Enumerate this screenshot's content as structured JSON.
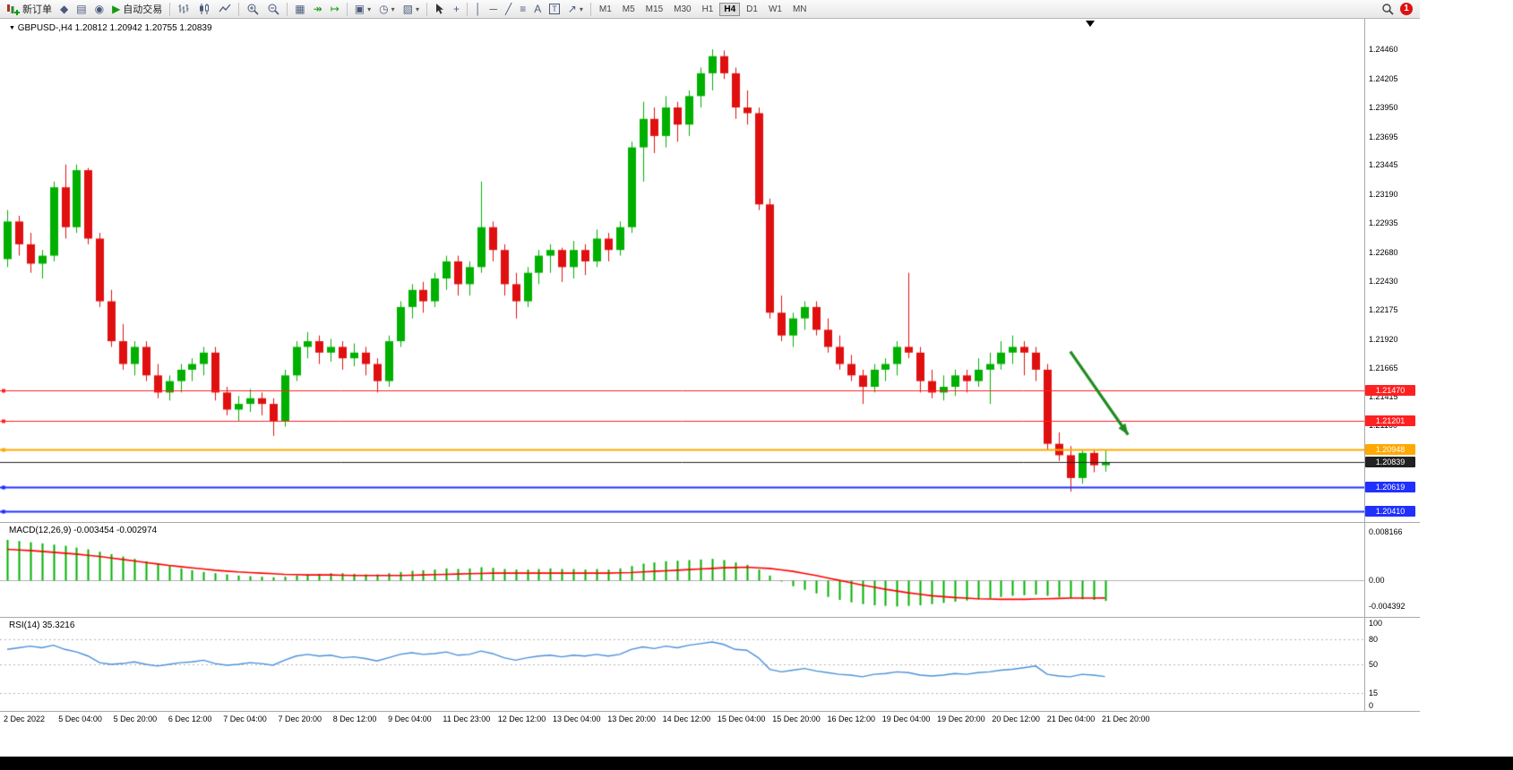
{
  "window": {
    "notification_count": "1"
  },
  "toolbar": {
    "new_order_label": "新订单",
    "autotrade_label": "自动交易",
    "icon_glyphs": {
      "symbols": "◆",
      "market_watch": "▤",
      "expert_advisors": "◉",
      "autotrade_play": "▶",
      "tile_windows": "▦",
      "auto_scroll": "↠",
      "chart_shift": "↦",
      "new_chart": "▣",
      "profiles": "◷",
      "templates": "▧",
      "crosshair": "+",
      "vertical_line": "│",
      "horizontal_line": "─",
      "trend_line": "╱",
      "fibonacci": "≡",
      "text": "A",
      "text_label": "T",
      "arrows": "↗",
      "caret": "▾"
    },
    "timeframes": [
      "M1",
      "M5",
      "M15",
      "M30",
      "H1",
      "H4",
      "D1",
      "W1",
      "MN"
    ],
    "active_timeframe": "H4"
  },
  "colors": {
    "bull": "#00b000",
    "bear": "#e01010",
    "macd_histogram": "#00b000",
    "macd_signal": "#ff0000",
    "rsi_line": "#4a90d9",
    "level_red": "#ff2020",
    "level_orange": "#ffa800",
    "level_blue": "#2030ff",
    "current_price": "#222222",
    "arrow": "#1f8b1f"
  },
  "chart_data": [
    {
      "type": "candlestick",
      "title": "GBPUSD-,H4",
      "ohlc_text": "1.20812 1.20942 1.20755 1.20839",
      "y_range": [
        1.2033,
        1.2472
      ],
      "price_axis_labels": [
        "1.24460",
        "1.24205",
        "1.23950",
        "1.23695",
        "1.23445",
        "1.23190",
        "1.22935",
        "1.22680",
        "1.22430",
        "1.22175",
        "1.21920",
        "1.21665",
        "1.21415",
        "1.21160"
      ],
      "x_axis_labels": [
        "2 Dec 2022",
        "5 Dec 04:00",
        "5 Dec 20:00",
        "6 Dec 12:00",
        "7 Dec 04:00",
        "7 Dec 20:00",
        "8 Dec 12:00",
        "9 Dec 04:00",
        "11 Dec 23:00",
        "12 Dec 12:00",
        "13 Dec 04:00",
        "13 Dec 20:00",
        "14 Dec 12:00",
        "15 Dec 04:00",
        "15 Dec 20:00",
        "16 Dec 12:00",
        "19 Dec 04:00",
        "19 Dec 20:00",
        "20 Dec 12:00",
        "21 Dec 04:00",
        "21 Dec 20:00"
      ],
      "hlines": [
        {
          "price": 1.2147,
          "label": "1.21470",
          "color": "#ff2020",
          "width": 1
        },
        {
          "price": 1.21201,
          "label": "1.21201",
          "color": "#ff2020",
          "width": 1
        },
        {
          "price": 1.20948,
          "label": "1.20948",
          "color": "#ffa800",
          "width": 2
        },
        {
          "price": 1.20839,
          "label": "1.20839",
          "color": "#222222",
          "width": 1,
          "current": true
        },
        {
          "price": 1.20619,
          "label": "1.20619",
          "color": "#2030ff",
          "width": 2
        },
        {
          "price": 1.2041,
          "label": "1.20410",
          "color": "#2030ff",
          "width": 2
        }
      ],
      "arrow": {
        "from_index": 92,
        "from_price": 1.2181,
        "to_index": 97,
        "to_price": 1.2108
      },
      "candles": [
        [
          1.2262,
          1.2305,
          1.2255,
          1.2295
        ],
        [
          1.2295,
          1.23,
          1.2265,
          1.2275
        ],
        [
          1.2275,
          1.2285,
          1.225,
          1.2258
        ],
        [
          1.2258,
          1.227,
          1.2245,
          1.2265
        ],
        [
          1.2265,
          1.233,
          1.226,
          1.2325
        ],
        [
          1.2325,
          1.2345,
          1.228,
          1.229
        ],
        [
          1.229,
          1.2345,
          1.2285,
          1.234
        ],
        [
          1.234,
          1.2342,
          1.2275,
          1.228
        ],
        [
          1.228,
          1.2285,
          1.222,
          1.2225
        ],
        [
          1.2225,
          1.2235,
          1.2185,
          1.219
        ],
        [
          1.219,
          1.2205,
          1.2165,
          1.217
        ],
        [
          1.217,
          1.219,
          1.216,
          1.2185
        ],
        [
          1.2185,
          1.219,
          1.2155,
          1.216
        ],
        [
          1.216,
          1.217,
          1.214,
          1.2145
        ],
        [
          1.2145,
          1.216,
          1.2138,
          1.2155
        ],
        [
          1.2155,
          1.217,
          1.2145,
          1.2165
        ],
        [
          1.2165,
          1.2175,
          1.2155,
          1.217
        ],
        [
          1.217,
          1.2185,
          1.216,
          1.218
        ],
        [
          1.218,
          1.2185,
          1.2138,
          1.2145
        ],
        [
          1.2145,
          1.215,
          1.2125,
          1.213
        ],
        [
          1.213,
          1.2142,
          1.212,
          1.2135
        ],
        [
          1.2135,
          1.2148,
          1.2128,
          1.214
        ],
        [
          1.214,
          1.2145,
          1.2125,
          1.2135
        ],
        [
          1.2135,
          1.214,
          1.2107,
          1.212
        ],
        [
          1.212,
          1.2165,
          1.2115,
          1.216
        ],
        [
          1.216,
          1.219,
          1.2155,
          1.2185
        ],
        [
          1.2185,
          1.2198,
          1.2175,
          1.219
        ],
        [
          1.219,
          1.2195,
          1.217,
          1.218
        ],
        [
          1.218,
          1.2192,
          1.2172,
          1.2185
        ],
        [
          1.2185,
          1.219,
          1.2165,
          1.2175
        ],
        [
          1.2175,
          1.2188,
          1.2168,
          1.218
        ],
        [
          1.218,
          1.2185,
          1.216,
          1.217
        ],
        [
          1.217,
          1.2175,
          1.2145,
          1.2155
        ],
        [
          1.2155,
          1.2195,
          1.215,
          1.219
        ],
        [
          1.219,
          1.2225,
          1.2185,
          1.222
        ],
        [
          1.222,
          1.224,
          1.221,
          1.2235
        ],
        [
          1.2235,
          1.2242,
          1.2215,
          1.2225
        ],
        [
          1.2225,
          1.225,
          1.222,
          1.2245
        ],
        [
          1.2245,
          1.2265,
          1.2235,
          1.226
        ],
        [
          1.226,
          1.2265,
          1.223,
          1.224
        ],
        [
          1.224,
          1.226,
          1.223,
          1.2255
        ],
        [
          1.2255,
          1.233,
          1.225,
          1.229
        ],
        [
          1.229,
          1.2295,
          1.226,
          1.227
        ],
        [
          1.227,
          1.2275,
          1.223,
          1.224
        ],
        [
          1.224,
          1.225,
          1.221,
          1.2225
        ],
        [
          1.2225,
          1.2255,
          1.222,
          1.225
        ],
        [
          1.225,
          1.227,
          1.224,
          1.2265
        ],
        [
          1.2265,
          1.2275,
          1.225,
          1.227
        ],
        [
          1.227,
          1.2272,
          1.2242,
          1.2255
        ],
        [
          1.2255,
          1.2278,
          1.2245,
          1.227
        ],
        [
          1.227,
          1.2275,
          1.2248,
          1.226
        ],
        [
          1.226,
          1.2288,
          1.2255,
          1.228
        ],
        [
          1.228,
          1.2285,
          1.226,
          1.227
        ],
        [
          1.227,
          1.2295,
          1.2265,
          1.229
        ],
        [
          1.229,
          1.2365,
          1.2285,
          1.236
        ],
        [
          1.236,
          1.24,
          1.233,
          1.2385
        ],
        [
          1.2385,
          1.2395,
          1.2355,
          1.237
        ],
        [
          1.237,
          1.2405,
          1.236,
          1.2395
        ],
        [
          1.2395,
          1.24,
          1.2365,
          1.238
        ],
        [
          1.238,
          1.241,
          1.237,
          1.2405
        ],
        [
          1.2405,
          1.243,
          1.2395,
          1.2425
        ],
        [
          1.2425,
          1.2446,
          1.241,
          1.244
        ],
        [
          1.244,
          1.2445,
          1.242,
          1.2425
        ],
        [
          1.2425,
          1.243,
          1.2385,
          1.2395
        ],
        [
          1.2395,
          1.241,
          1.238,
          1.239
        ],
        [
          1.239,
          1.2395,
          1.2305,
          1.231
        ],
        [
          1.231,
          1.2315,
          1.221,
          1.2215
        ],
        [
          1.2215,
          1.223,
          1.219,
          1.2195
        ],
        [
          1.2195,
          1.2215,
          1.2185,
          1.221
        ],
        [
          1.221,
          1.2225,
          1.22,
          1.222
        ],
        [
          1.222,
          1.2225,
          1.2195,
          1.22
        ],
        [
          1.22,
          1.221,
          1.218,
          1.2185
        ],
        [
          1.2185,
          1.2195,
          1.2165,
          1.217
        ],
        [
          1.217,
          1.2178,
          1.2155,
          1.216
        ],
        [
          1.216,
          1.2165,
          1.2135,
          1.215
        ],
        [
          1.215,
          1.217,
          1.2145,
          1.2165
        ],
        [
          1.2165,
          1.2175,
          1.2155,
          1.217
        ],
        [
          1.217,
          1.219,
          1.216,
          1.2185
        ],
        [
          1.2185,
          1.225,
          1.2175,
          1.218
        ],
        [
          1.218,
          1.2185,
          1.2145,
          1.2155
        ],
        [
          1.2155,
          1.2165,
          1.214,
          1.2145
        ],
        [
          1.2145,
          1.216,
          1.2138,
          1.215
        ],
        [
          1.215,
          1.2165,
          1.2142,
          1.216
        ],
        [
          1.216,
          1.2165,
          1.2145,
          1.2155
        ],
        [
          1.2155,
          1.2175,
          1.215,
          1.2165
        ],
        [
          1.2165,
          1.218,
          1.2135,
          1.217
        ],
        [
          1.217,
          1.219,
          1.2165,
          1.218
        ],
        [
          1.218,
          1.2195,
          1.217,
          1.2185
        ],
        [
          1.2185,
          1.219,
          1.216,
          1.218
        ],
        [
          1.218,
          1.2185,
          1.2155,
          1.2165
        ],
        [
          1.2165,
          1.217,
          1.2095,
          1.21
        ],
        [
          1.21,
          1.211,
          1.2085,
          1.209
        ],
        [
          1.209,
          1.2098,
          1.2058,
          1.207
        ],
        [
          1.207,
          1.2095,
          1.2065,
          1.2092
        ],
        [
          1.2092,
          1.2095,
          1.2075,
          1.20812
        ],
        [
          1.20812,
          1.20942,
          1.20755,
          1.20839
        ]
      ]
    },
    {
      "type": "macd",
      "label": "MACD(12,26,9)",
      "values_text": "-0.003454 -0.002974",
      "axis_labels": [
        "0.008166",
        "0.00",
        "-0.004392"
      ],
      "y_range": [
        -0.006,
        0.0095
      ],
      "histogram": [
        0.0068,
        0.0066,
        0.0064,
        0.0062,
        0.006,
        0.0058,
        0.0055,
        0.0052,
        0.0048,
        0.0044,
        0.004,
        0.0036,
        0.0032,
        0.0028,
        0.0024,
        0.002,
        0.0017,
        0.0014,
        0.0012,
        0.001,
        0.0008,
        0.0007,
        0.0006,
        0.0005,
        0.0006,
        0.0008,
        0.001,
        0.0011,
        0.0012,
        0.0012,
        0.0011,
        0.001,
        0.001,
        0.0012,
        0.0014,
        0.0016,
        0.0017,
        0.0018,
        0.002,
        0.0019,
        0.002,
        0.0022,
        0.0021,
        0.0019,
        0.0018,
        0.0018,
        0.0019,
        0.002,
        0.0019,
        0.0019,
        0.0018,
        0.0019,
        0.0018,
        0.002,
        0.0024,
        0.0028,
        0.003,
        0.0032,
        0.0033,
        0.0034,
        0.0035,
        0.0036,
        0.0034,
        0.003,
        0.0026,
        0.0018,
        0.0008,
        -0.0002,
        -0.001,
        -0.0016,
        -0.0022,
        -0.0028,
        -0.0033,
        -0.0037,
        -0.004,
        -0.0042,
        -0.0043,
        -0.0044,
        -0.0043,
        -0.0042,
        -0.004,
        -0.0038,
        -0.0036,
        -0.0034,
        -0.0032,
        -0.003,
        -0.0028,
        -0.0026,
        -0.0025,
        -0.0024,
        -0.0026,
        -0.0028,
        -0.003,
        -0.0032,
        -0.0033,
        -0.003454
      ],
      "signal": [
        0.0052,
        0.0051,
        0.005,
        0.00485,
        0.0047,
        0.00455,
        0.0044,
        0.0042,
        0.004,
        0.00375,
        0.0035,
        0.00325,
        0.003,
        0.00275,
        0.0025,
        0.0023,
        0.0021,
        0.0019,
        0.0017,
        0.00155,
        0.0014,
        0.0013,
        0.0012,
        0.0011,
        0.001,
        0.00095,
        0.0009,
        0.0009,
        0.0009,
        0.00085,
        0.0008,
        0.0008,
        0.0008,
        0.0008,
        0.0008,
        0.00085,
        0.0009,
        0.00095,
        0.001,
        0.00105,
        0.0011,
        0.00115,
        0.0012,
        0.0012,
        0.0012,
        0.0012,
        0.0012,
        0.0012,
        0.0012,
        0.0012,
        0.0012,
        0.0012,
        0.0012,
        0.00125,
        0.0013,
        0.0014,
        0.0015,
        0.0016,
        0.0017,
        0.0018,
        0.0019,
        0.002,
        0.0021,
        0.00215,
        0.0022,
        0.0021,
        0.002,
        0.00175,
        0.0015,
        0.00115,
        0.0008,
        0.0004,
        0.0,
        -0.0004,
        -0.0008,
        -0.00115,
        -0.0015,
        -0.0018,
        -0.0021,
        -0.00235,
        -0.0026,
        -0.00275,
        -0.0029,
        -0.003,
        -0.0031,
        -0.00315,
        -0.0032,
        -0.0032,
        -0.0032,
        -0.00315,
        -0.0031,
        -0.00305,
        -0.003,
        -0.003,
        -0.003,
        -0.002974
      ]
    },
    {
      "type": "rsi",
      "label": "RSI(14)",
      "value_text": "35.3216",
      "axis_labels": [
        "100",
        "80",
        "50",
        "15",
        "0"
      ],
      "levels": [
        80,
        50,
        15
      ],
      "y_range": [
        -5,
        105
      ],
      "values": [
        68,
        70,
        72,
        70,
        73,
        68,
        65,
        60,
        52,
        50,
        51,
        53,
        50,
        48,
        50,
        52,
        53,
        55,
        51,
        49,
        50,
        52,
        51,
        49,
        55,
        60,
        62,
        60,
        61,
        58,
        59,
        57,
        54,
        58,
        62,
        64,
        62,
        63,
        65,
        61,
        62,
        66,
        63,
        58,
        55,
        58,
        60,
        61,
        59,
        61,
        60,
        62,
        60,
        62,
        68,
        71,
        69,
        72,
        70,
        73,
        75,
        77,
        74,
        68,
        67,
        58,
        44,
        41,
        43,
        45,
        42,
        40,
        38,
        37,
        35,
        38,
        39,
        41,
        40,
        37,
        36,
        37,
        39,
        38,
        40,
        41,
        43,
        44,
        46,
        48,
        38,
        36,
        35,
        38,
        37,
        35.3216
      ]
    }
  ]
}
